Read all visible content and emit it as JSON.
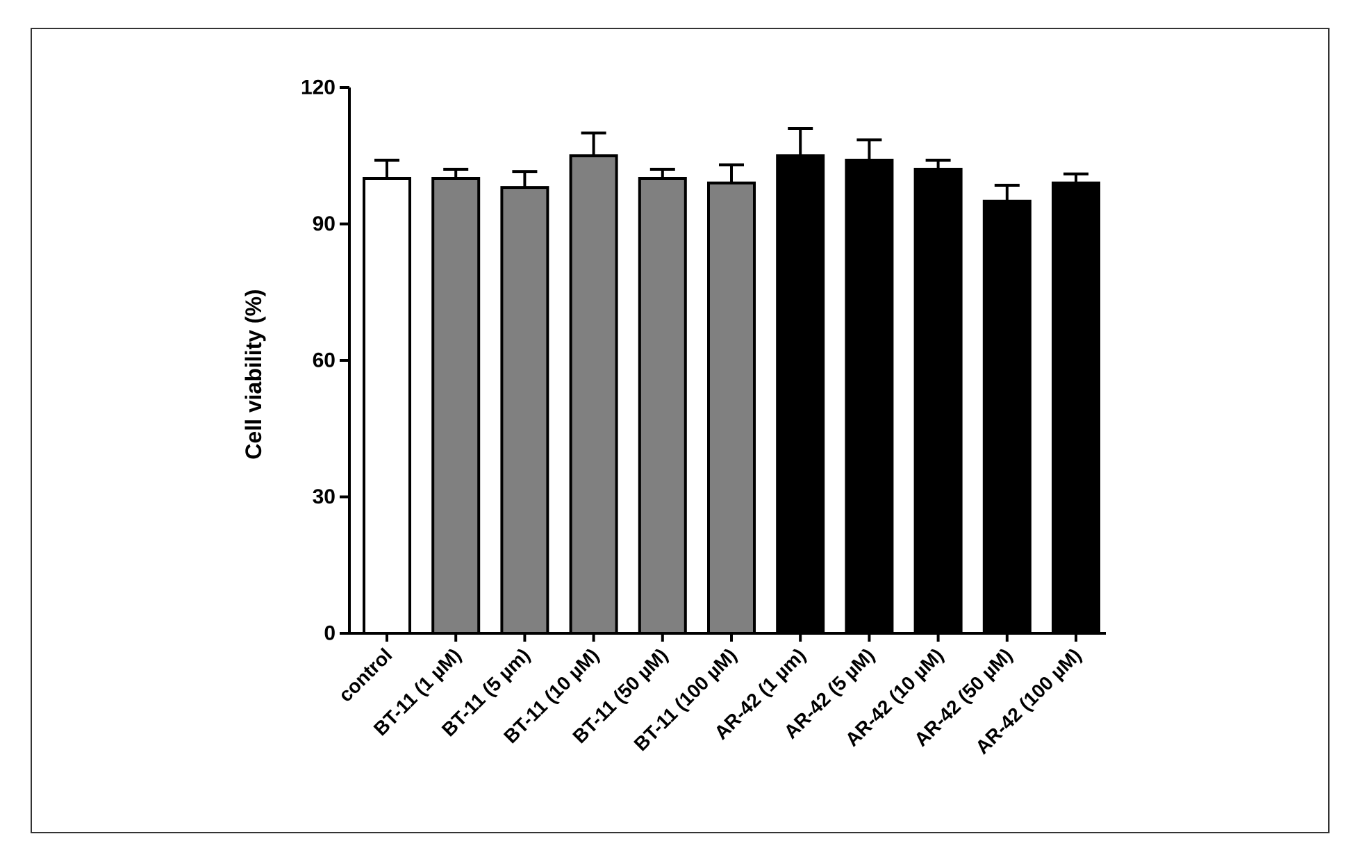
{
  "chart_data": {
    "type": "bar",
    "title": "",
    "xlabel": "",
    "ylabel": "Cell viability (%)",
    "ylim": [
      0,
      120
    ],
    "yticks": [
      0,
      30,
      60,
      90,
      120
    ],
    "grid": false,
    "categories": [
      "control",
      "BT-11 (1 µM)",
      "BT-11 (5 µm)",
      "BT-11 (10 µM)",
      "BT-11 (50 µM)",
      "BT-11 (100 µM)",
      "AR-42 (1 µm)",
      "AR-42 (5 µM)",
      "AR-42 (10 µM)",
      "AR-42 (50 µM)",
      "AR-42 (100 µM)"
    ],
    "values": [
      100,
      100,
      98,
      105,
      100,
      99,
      105,
      104,
      102,
      95,
      99
    ],
    "error": [
      4,
      2,
      3.5,
      5,
      2,
      4,
      6,
      4.5,
      2,
      3.5,
      2
    ],
    "bar_colors": [
      "#ffffff",
      "#808080",
      "#808080",
      "#808080",
      "#808080",
      "#808080",
      "#000000",
      "#000000",
      "#000000",
      "#000000",
      "#000000"
    ],
    "stroke_color": "#000000"
  }
}
